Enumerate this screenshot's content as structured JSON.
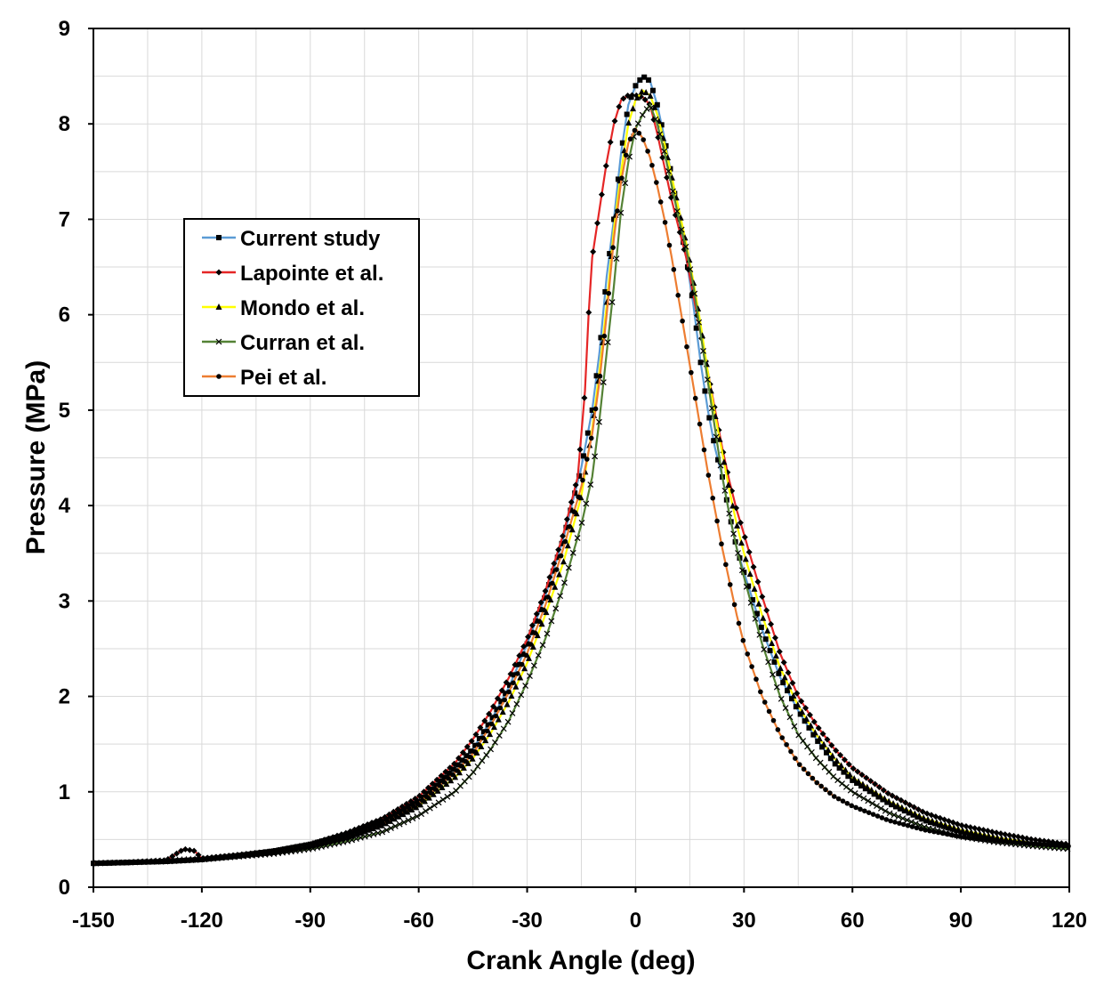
{
  "chart_data": {
    "type": "line",
    "title": "",
    "xlabel": "Crank Angle (deg)",
    "ylabel": "Pressure (MPa)",
    "xlim": [
      -150,
      120
    ],
    "ylim": [
      0,
      9
    ],
    "x_ticks": [
      -150,
      -120,
      -90,
      -60,
      -30,
      0,
      30,
      60,
      90,
      120
    ],
    "x_tick_labels": [
      "-150",
      "-120",
      "-90",
      "-60",
      "-30",
      "0",
      "30",
      "60",
      "90",
      "120"
    ],
    "y_ticks": [
      0,
      1,
      2,
      3,
      4,
      5,
      6,
      7,
      8,
      9
    ],
    "y_tick_labels": [
      "0",
      "1",
      "2",
      "3",
      "4",
      "5",
      "6",
      "7",
      "8",
      "9"
    ],
    "x_minor_step": 15,
    "y_minor_step": 0.5,
    "grid": true,
    "legend_position": "left",
    "series": [
      {
        "name": "Current study",
        "color": "#5b9bd5",
        "marker": "square",
        "points": [
          [
            -150,
            0.25
          ],
          [
            -140,
            0.26
          ],
          [
            -130,
            0.27
          ],
          [
            -120,
            0.29
          ],
          [
            -110,
            0.33
          ],
          [
            -100,
            0.38
          ],
          [
            -90,
            0.45
          ],
          [
            -80,
            0.55
          ],
          [
            -70,
            0.7
          ],
          [
            -60,
            0.9
          ],
          [
            -50,
            1.25
          ],
          [
            -45,
            1.45
          ],
          [
            -40,
            1.75
          ],
          [
            -35,
            2.1
          ],
          [
            -30,
            2.55
          ],
          [
            -25,
            3.05
          ],
          [
            -20,
            3.65
          ],
          [
            -15,
            4.4
          ],
          [
            -12,
            5.0
          ],
          [
            -10,
            5.6
          ],
          [
            -8,
            6.4
          ],
          [
            -6,
            7.0
          ],
          [
            -4,
            7.7
          ],
          [
            -2,
            8.2
          ],
          [
            0,
            8.4
          ],
          [
            2,
            8.5
          ],
          [
            4,
            8.45
          ],
          [
            6,
            8.2
          ],
          [
            8,
            7.85
          ],
          [
            10,
            7.45
          ],
          [
            12,
            7.0
          ],
          [
            14,
            6.6
          ],
          [
            16,
            6.1
          ],
          [
            18,
            5.5
          ],
          [
            20,
            5.0
          ],
          [
            22,
            4.6
          ],
          [
            24,
            4.3
          ],
          [
            26,
            3.9
          ],
          [
            28,
            3.55
          ],
          [
            30,
            3.3
          ],
          [
            35,
            2.7
          ],
          [
            40,
            2.2
          ],
          [
            45,
            1.85
          ],
          [
            50,
            1.55
          ],
          [
            55,
            1.3
          ],
          [
            60,
            1.12
          ],
          [
            70,
            0.88
          ],
          [
            80,
            0.7
          ],
          [
            90,
            0.58
          ],
          [
            100,
            0.5
          ],
          [
            110,
            0.45
          ],
          [
            120,
            0.42
          ]
        ]
      },
      {
        "name": "Lapointe et al.",
        "color": "#e52626",
        "marker": "diamond",
        "points": [
          [
            -150,
            0.25
          ],
          [
            -140,
            0.26
          ],
          [
            -130,
            0.28
          ],
          [
            -125,
            0.4
          ],
          [
            -122,
            0.38
          ],
          [
            -120,
            0.3
          ],
          [
            -110,
            0.34
          ],
          [
            -100,
            0.38
          ],
          [
            -90,
            0.45
          ],
          [
            -80,
            0.57
          ],
          [
            -70,
            0.72
          ],
          [
            -60,
            0.95
          ],
          [
            -50,
            1.3
          ],
          [
            -45,
            1.55
          ],
          [
            -40,
            1.85
          ],
          [
            -35,
            2.2
          ],
          [
            -30,
            2.6
          ],
          [
            -25,
            3.1
          ],
          [
            -20,
            3.7
          ],
          [
            -16,
            4.3
          ],
          [
            -14,
            5.2
          ],
          [
            -13,
            6.0
          ],
          [
            -12,
            6.6
          ],
          [
            -10,
            7.1
          ],
          [
            -8,
            7.6
          ],
          [
            -6,
            8.0
          ],
          [
            -4,
            8.25
          ],
          [
            -2,
            8.3
          ],
          [
            0,
            8.3
          ],
          [
            2,
            8.28
          ],
          [
            4,
            8.2
          ],
          [
            6,
            7.9
          ],
          [
            8,
            7.55
          ],
          [
            10,
            7.2
          ],
          [
            12,
            6.9
          ],
          [
            14,
            6.6
          ],
          [
            16,
            6.2
          ],
          [
            18,
            5.8
          ],
          [
            20,
            5.4
          ],
          [
            22,
            5.0
          ],
          [
            24,
            4.6
          ],
          [
            26,
            4.25
          ],
          [
            28,
            3.95
          ],
          [
            30,
            3.7
          ],
          [
            35,
            3.05
          ],
          [
            40,
            2.45
          ],
          [
            45,
            2.0
          ],
          [
            50,
            1.7
          ],
          [
            55,
            1.45
          ],
          [
            60,
            1.25
          ],
          [
            70,
            0.98
          ],
          [
            80,
            0.78
          ],
          [
            90,
            0.65
          ],
          [
            100,
            0.57
          ],
          [
            110,
            0.5
          ],
          [
            120,
            0.45
          ]
        ]
      },
      {
        "name": "Mondo et al.",
        "color": "#ffff00",
        "marker": "triangle",
        "points": [
          [
            -150,
            0.25
          ],
          [
            -140,
            0.26
          ],
          [
            -130,
            0.28
          ],
          [
            -120,
            0.3
          ],
          [
            -110,
            0.33
          ],
          [
            -100,
            0.37
          ],
          [
            -90,
            0.43
          ],
          [
            -80,
            0.52
          ],
          [
            -70,
            0.65
          ],
          [
            -60,
            0.85
          ],
          [
            -50,
            1.15
          ],
          [
            -45,
            1.35
          ],
          [
            -40,
            1.62
          ],
          [
            -35,
            1.95
          ],
          [
            -30,
            2.35
          ],
          [
            -25,
            2.85
          ],
          [
            -20,
            3.4
          ],
          [
            -15,
            4.1
          ],
          [
            -12,
            4.8
          ],
          [
            -10,
            5.4
          ],
          [
            -8,
            6.1
          ],
          [
            -6,
            6.9
          ],
          [
            -4,
            7.5
          ],
          [
            -2,
            8.0
          ],
          [
            0,
            8.25
          ],
          [
            2,
            8.35
          ],
          [
            4,
            8.3
          ],
          [
            6,
            8.1
          ],
          [
            8,
            7.8
          ],
          [
            10,
            7.45
          ],
          [
            12,
            7.1
          ],
          [
            14,
            6.75
          ],
          [
            16,
            6.35
          ],
          [
            18,
            5.9
          ],
          [
            20,
            5.4
          ],
          [
            22,
            4.95
          ],
          [
            24,
            4.55
          ],
          [
            26,
            4.15
          ],
          [
            28,
            3.8
          ],
          [
            30,
            3.5
          ],
          [
            35,
            2.85
          ],
          [
            40,
            2.3
          ],
          [
            45,
            1.9
          ],
          [
            50,
            1.6
          ],
          [
            55,
            1.35
          ],
          [
            60,
            1.15
          ],
          [
            70,
            0.9
          ],
          [
            80,
            0.72
          ],
          [
            90,
            0.6
          ],
          [
            100,
            0.52
          ],
          [
            110,
            0.46
          ],
          [
            120,
            0.42
          ]
        ]
      },
      {
        "name": "Curran et al.",
        "color": "#548235",
        "marker": "x",
        "points": [
          [
            -150,
            0.25
          ],
          [
            -140,
            0.26
          ],
          [
            -130,
            0.27
          ],
          [
            -120,
            0.29
          ],
          [
            -110,
            0.32
          ],
          [
            -100,
            0.35
          ],
          [
            -90,
            0.4
          ],
          [
            -80,
            0.48
          ],
          [
            -70,
            0.58
          ],
          [
            -60,
            0.75
          ],
          [
            -50,
            1.0
          ],
          [
            -45,
            1.2
          ],
          [
            -40,
            1.45
          ],
          [
            -35,
            1.75
          ],
          [
            -30,
            2.15
          ],
          [
            -25,
            2.6
          ],
          [
            -20,
            3.15
          ],
          [
            -15,
            3.8
          ],
          [
            -12,
            4.3
          ],
          [
            -10,
            4.9
          ],
          [
            -8,
            5.6
          ],
          [
            -6,
            6.3
          ],
          [
            -4,
            7.1
          ],
          [
            -2,
            7.6
          ],
          [
            0,
            7.95
          ],
          [
            2,
            8.1
          ],
          [
            4,
            8.2
          ],
          [
            6,
            8.0
          ],
          [
            8,
            7.7
          ],
          [
            10,
            7.35
          ],
          [
            12,
            7.0
          ],
          [
            14,
            6.7
          ],
          [
            16,
            6.3
          ],
          [
            18,
            5.8
          ],
          [
            20,
            5.3
          ],
          [
            22,
            4.8
          ],
          [
            24,
            4.3
          ],
          [
            26,
            3.9
          ],
          [
            28,
            3.55
          ],
          [
            30,
            3.25
          ],
          [
            35,
            2.55
          ],
          [
            40,
            2.0
          ],
          [
            45,
            1.6
          ],
          [
            50,
            1.35
          ],
          [
            55,
            1.15
          ],
          [
            60,
            1.0
          ],
          [
            70,
            0.78
          ],
          [
            80,
            0.63
          ],
          [
            90,
            0.53
          ],
          [
            100,
            0.47
          ],
          [
            110,
            0.43
          ],
          [
            120,
            0.4
          ]
        ]
      },
      {
        "name": "Pei et al.",
        "color": "#ed7d31",
        "marker": "circle",
        "points": [
          [
            -150,
            0.25
          ],
          [
            -140,
            0.26
          ],
          [
            -130,
            0.27
          ],
          [
            -120,
            0.29
          ],
          [
            -110,
            0.32
          ],
          [
            -100,
            0.36
          ],
          [
            -90,
            0.42
          ],
          [
            -80,
            0.52
          ],
          [
            -70,
            0.66
          ],
          [
            -60,
            0.88
          ],
          [
            -50,
            1.2
          ],
          [
            -45,
            1.4
          ],
          [
            -40,
            1.7
          ],
          [
            -35,
            2.05
          ],
          [
            -30,
            2.45
          ],
          [
            -25,
            2.95
          ],
          [
            -20,
            3.55
          ],
          [
            -15,
            4.2
          ],
          [
            -12,
            4.75
          ],
          [
            -10,
            5.3
          ],
          [
            -8,
            6.0
          ],
          [
            -6,
            6.8
          ],
          [
            -4,
            7.4
          ],
          [
            -2,
            7.8
          ],
          [
            0,
            7.95
          ],
          [
            2,
            7.85
          ],
          [
            4,
            7.65
          ],
          [
            6,
            7.35
          ],
          [
            8,
            7.0
          ],
          [
            10,
            6.6
          ],
          [
            12,
            6.15
          ],
          [
            14,
            5.7
          ],
          [
            16,
            5.25
          ],
          [
            18,
            4.8
          ],
          [
            20,
            4.35
          ],
          [
            22,
            3.95
          ],
          [
            24,
            3.55
          ],
          [
            26,
            3.2
          ],
          [
            28,
            2.85
          ],
          [
            30,
            2.55
          ],
          [
            35,
            2.0
          ],
          [
            40,
            1.6
          ],
          [
            45,
            1.3
          ],
          [
            50,
            1.1
          ],
          [
            55,
            0.95
          ],
          [
            60,
            0.85
          ],
          [
            70,
            0.7
          ],
          [
            80,
            0.6
          ],
          [
            90,
            0.53
          ],
          [
            100,
            0.48
          ],
          [
            110,
            0.45
          ],
          [
            120,
            0.43
          ]
        ]
      }
    ]
  }
}
